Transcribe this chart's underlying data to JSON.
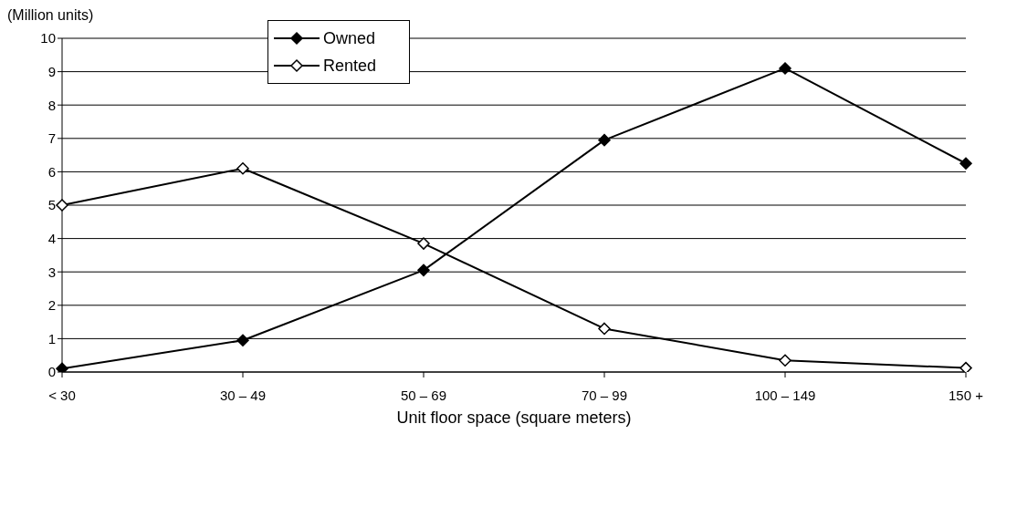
{
  "chart_data": {
    "type": "line",
    "ylabel": "(Million units)",
    "xlabel": "Unit floor space (square meters)",
    "categories": [
      "< 30",
      "30 – 49",
      "50 – 69",
      "70 – 99",
      "100 – 149",
      "150 +"
    ],
    "series": [
      {
        "name": "Owned",
        "color": "#000000",
        "values": [
          0.1,
          0.95,
          3.05,
          6.95,
          9.1,
          6.25
        ]
      },
      {
        "name": "Rented",
        "color": "#000000",
        "values": [
          5.0,
          6.1,
          3.85,
          1.3,
          0.35,
          0.12
        ]
      }
    ],
    "ylim": [
      0,
      10
    ],
    "yticks": [
      0,
      1,
      2,
      3,
      4,
      5,
      6,
      7,
      8,
      9,
      10
    ],
    "grid": "y",
    "legend": "top left",
    "marker": "diamond",
    "line_style": "solid"
  }
}
